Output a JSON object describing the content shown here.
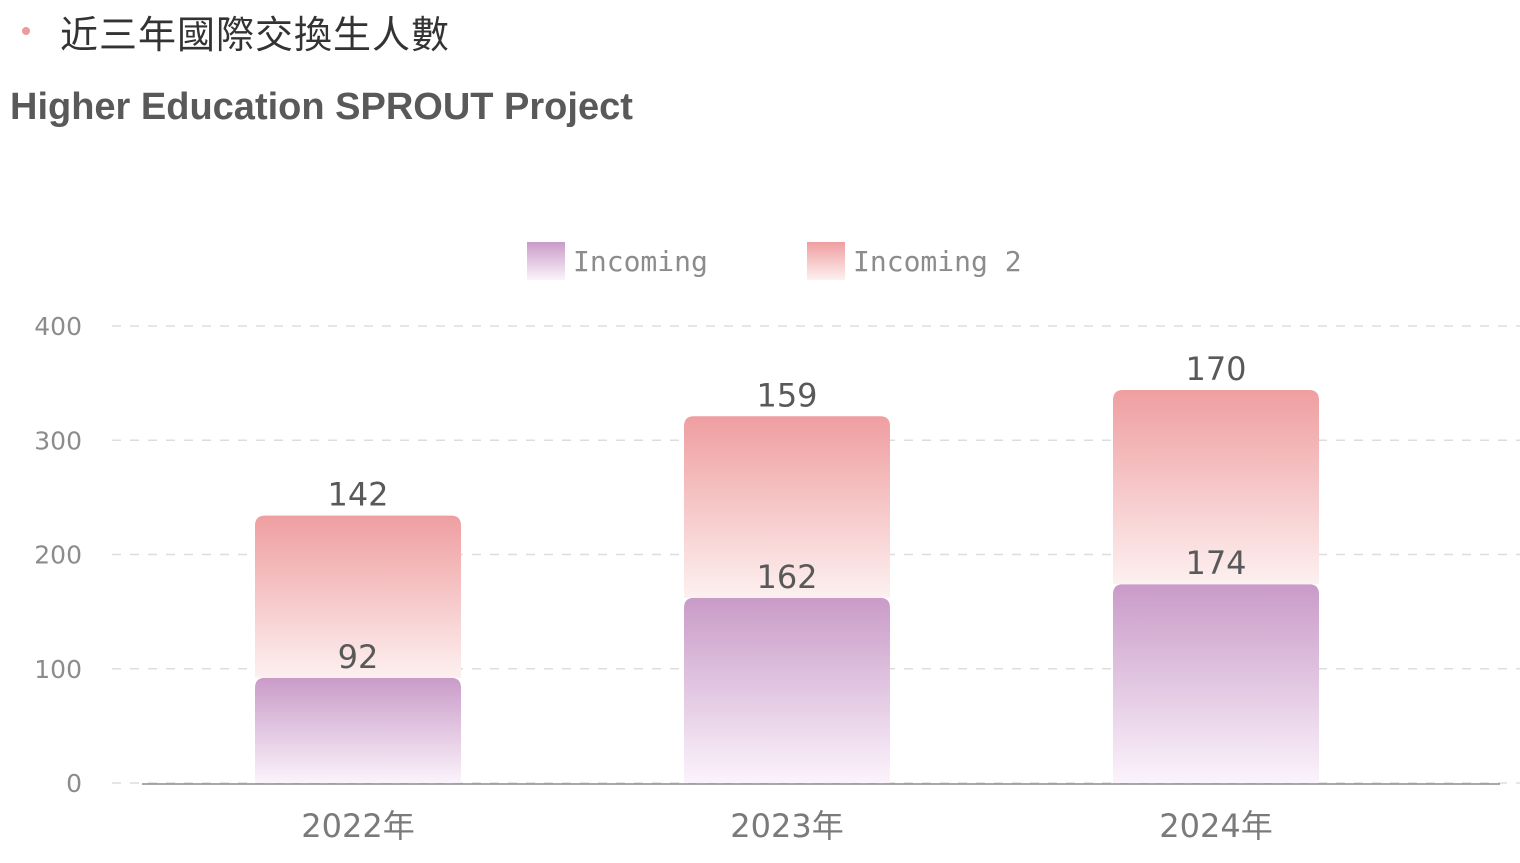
{
  "header": {
    "heading": "近三年國際交換生人數",
    "subtitle": "Higher Education SPROUT Project"
  },
  "colors": {
    "bullet": "#ef9a9a",
    "incoming": "#c99bc8",
    "incoming_2": "#ef9ea0",
    "gradient_end": "#ffffff",
    "axis": "#8c8c8c",
    "grid": "#dddddd"
  },
  "chart_data": {
    "type": "bar",
    "stacked": true,
    "categories": [
      "2022年",
      "2023年",
      "2024年"
    ],
    "series": [
      {
        "name": "Incoming",
        "values": [
          92,
          162,
          174
        ]
      },
      {
        "name": "Incoming 2",
        "values": [
          142,
          159,
          170
        ]
      }
    ],
    "ylim": [
      0,
      400
    ],
    "yticks": [
      0,
      100,
      200,
      300,
      400
    ],
    "grid": true,
    "legend": "top-center",
    "data_labels": true
  }
}
